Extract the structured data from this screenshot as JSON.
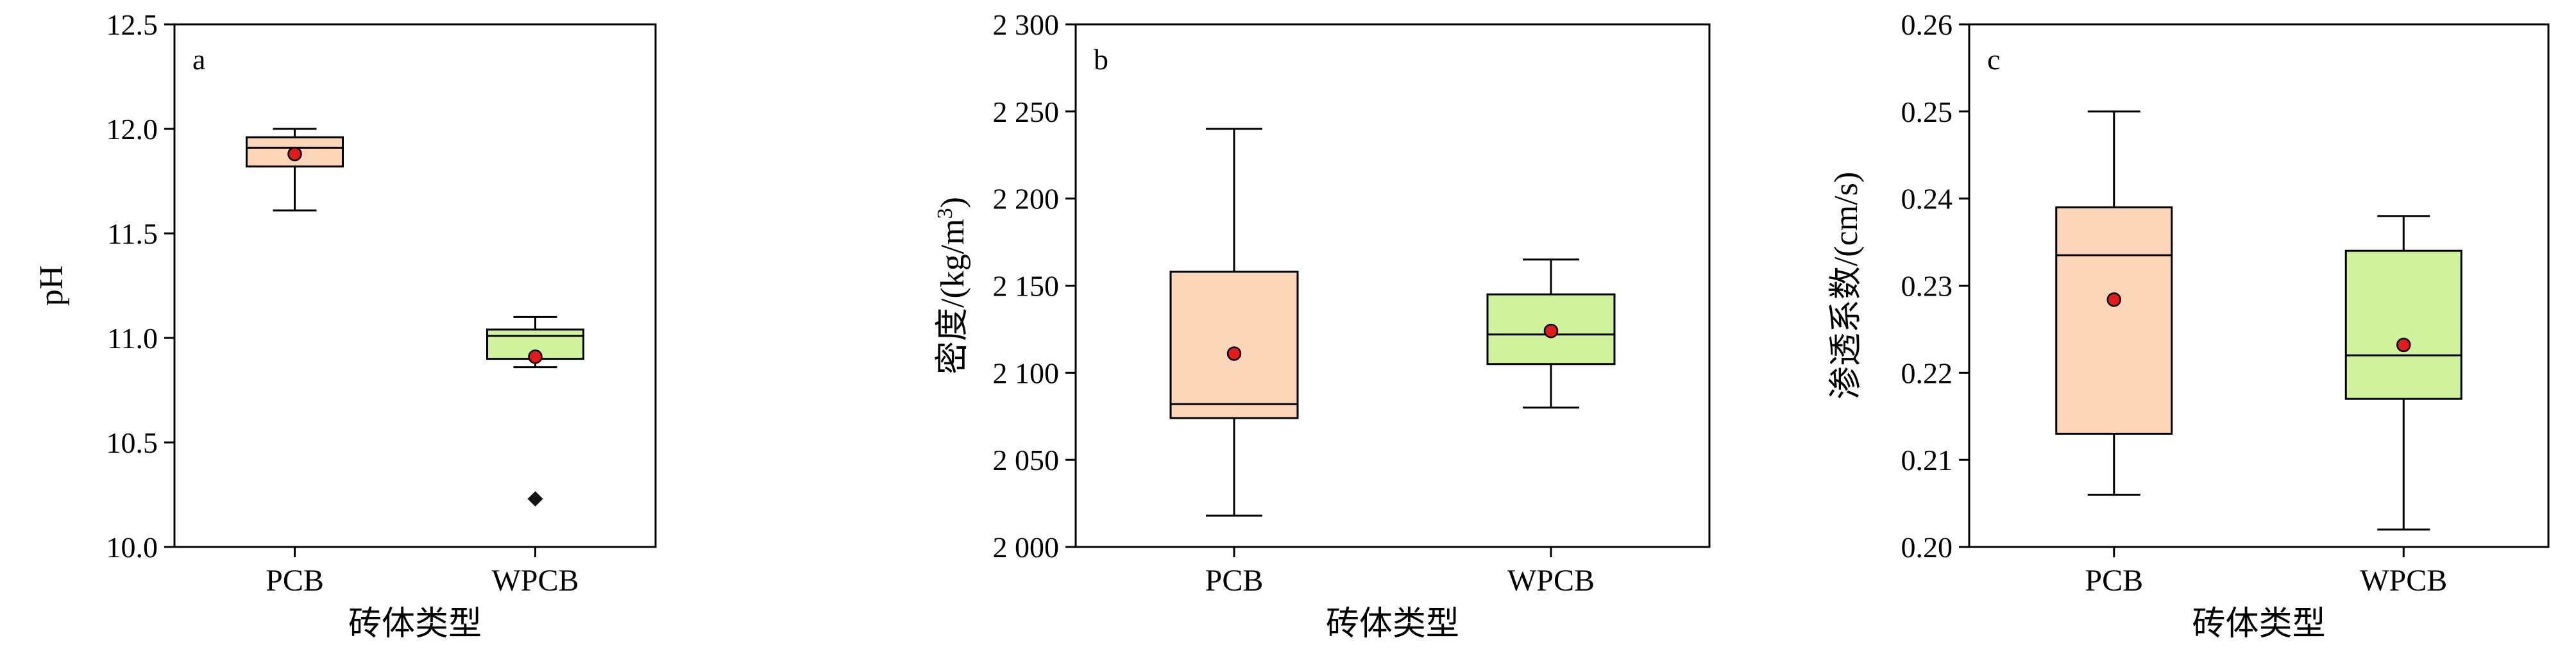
{
  "colors": {
    "pcb_box": "#fbd5b7",
    "wpcb_box": "#d1f29c",
    "mean_marker": "#e11b1b",
    "outlier": "#111111",
    "line": "#000000"
  },
  "chart_data": [
    {
      "type": "box",
      "panel_label": "a",
      "ylabel": "pH",
      "xlabel": "砖体类型",
      "categories": [
        "PCB",
        "WPCB"
      ],
      "ylim": [
        10.0,
        12.5
      ],
      "yticks": [
        10.0,
        10.5,
        11.0,
        11.5,
        12.0,
        12.5
      ],
      "ytick_labels": [
        "10.0",
        "10.5",
        "11.0",
        "11.5",
        "12.0",
        "12.5"
      ],
      "boxes": [
        {
          "category": "PCB",
          "min": 11.61,
          "q1": 11.82,
          "median": 11.91,
          "q3": 11.96,
          "max": 12.0,
          "mean": 11.88,
          "outliers": []
        },
        {
          "category": "WPCB",
          "min": 10.86,
          "q1": 10.9,
          "median": 11.01,
          "q3": 11.04,
          "max": 11.1,
          "mean": 10.91,
          "outliers": [
            10.23
          ]
        }
      ]
    },
    {
      "type": "box",
      "panel_label": "b",
      "ylabel": "密度/(kg/m³)",
      "xlabel": "砖体类型",
      "categories": [
        "PCB",
        "WPCB"
      ],
      "ylim": [
        2000,
        2300
      ],
      "yticks": [
        2000,
        2050,
        2100,
        2150,
        2200,
        2250,
        2300
      ],
      "ytick_labels": [
        "2 000",
        "2 050",
        "2 100",
        "2 150",
        "2 200",
        "2 250",
        "2 300"
      ],
      "boxes": [
        {
          "category": "PCB",
          "min": 2018,
          "q1": 2074,
          "median": 2082,
          "q3": 2158,
          "max": 2240,
          "mean": 2111,
          "outliers": []
        },
        {
          "category": "WPCB",
          "min": 2080,
          "q1": 2105,
          "median": 2122,
          "q3": 2145,
          "max": 2165,
          "mean": 2124,
          "outliers": []
        }
      ]
    },
    {
      "type": "box",
      "panel_label": "c",
      "ylabel": "渗透系数/(cm/s)",
      "xlabel": "砖体类型",
      "categories": [
        "PCB",
        "WPCB"
      ],
      "ylim": [
        0.2,
        0.26
      ],
      "yticks": [
        0.2,
        0.21,
        0.22,
        0.23,
        0.24,
        0.25,
        0.26
      ],
      "ytick_labels": [
        "0.20",
        "0.21",
        "0.22",
        "0.23",
        "0.24",
        "0.25",
        "0.26"
      ],
      "boxes": [
        {
          "category": "PCB",
          "min": 0.206,
          "q1": 0.213,
          "median": 0.2335,
          "q3": 0.239,
          "max": 0.25,
          "mean": 0.2284,
          "outliers": []
        },
        {
          "category": "WPCB",
          "min": 0.202,
          "q1": 0.217,
          "median": 0.222,
          "q3": 0.234,
          "max": 0.238,
          "mean": 0.2232,
          "outliers": []
        }
      ]
    }
  ]
}
